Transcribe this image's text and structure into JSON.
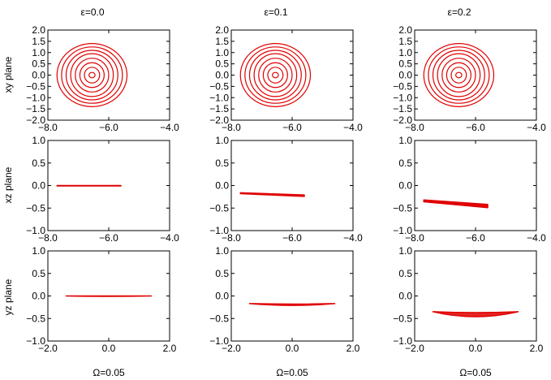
{
  "figure": {
    "column_titles": [
      "ε=0.0",
      "ε=0.1",
      "ε=0.2"
    ],
    "row_labels": [
      "xy plane",
      "xz plane",
      "yz plane"
    ],
    "bottom_labels": [
      "Ω=0.05",
      "Ω=0.05",
      "Ω=0.05"
    ],
    "colors": {
      "curve": "#e00000",
      "axes": "#000000",
      "background": "#ffffff"
    }
  },
  "chart_data": [
    {
      "type": "line",
      "row": "xy plane",
      "column": "ε=0.0",
      "xlim": [
        -8.0,
        -4.0
      ],
      "ylim": [
        -2.0,
        2.0
      ],
      "xticks": [
        "−8.0",
        "−6.0",
        "−4.0"
      ],
      "yticks": [
        "2.0",
        "1.5",
        "1.0",
        "0.5",
        "0.0",
        "−0.5",
        "−1.0",
        "−1.5",
        "−2.0"
      ],
      "curves": [
        {
          "kind": "ellipse",
          "center": [
            -6.55,
            0.0
          ],
          "rx": [
            0.1,
            0.25,
            0.4,
            0.55,
            0.7,
            0.85,
            1.0,
            1.15
          ],
          "ry": [
            0.12,
            0.35,
            0.55,
            0.75,
            0.95,
            1.1,
            1.25,
            1.4
          ]
        }
      ]
    },
    {
      "type": "line",
      "row": "xy plane",
      "column": "ε=0.1",
      "xlim": [
        -8.0,
        -4.0
      ],
      "ylim": [
        -2.0,
        2.0
      ],
      "xticks": [
        "−8.0",
        "−6.0",
        "−4.0"
      ],
      "yticks": [
        "2.0",
        "1.5",
        "1.0",
        "0.5",
        "0.0",
        "−0.5",
        "−1.0",
        "−1.5",
        "−2.0"
      ],
      "curves": [
        {
          "kind": "ellipse",
          "center": [
            -6.55,
            0.0
          ],
          "rx": [
            0.1,
            0.25,
            0.4,
            0.55,
            0.7,
            0.85,
            1.0,
            1.15
          ],
          "ry": [
            0.12,
            0.35,
            0.55,
            0.75,
            0.95,
            1.1,
            1.25,
            1.4
          ]
        }
      ]
    },
    {
      "type": "line",
      "row": "xy plane",
      "column": "ε=0.2",
      "xlim": [
        -8.0,
        -4.0
      ],
      "ylim": [
        -2.0,
        2.0
      ],
      "xticks": [
        "−8.0",
        "−6.0",
        "−4.0"
      ],
      "yticks": [
        "2.0",
        "1.5",
        "1.0",
        "0.5",
        "0.0",
        "−0.5",
        "−1.0",
        "−1.5",
        "−2.0"
      ],
      "curves": [
        {
          "kind": "ellipse",
          "center": [
            -6.55,
            0.0
          ],
          "rx": [
            0.1,
            0.25,
            0.4,
            0.55,
            0.7,
            0.85,
            1.0,
            1.15
          ],
          "ry": [
            0.12,
            0.35,
            0.55,
            0.75,
            0.95,
            1.1,
            1.25,
            1.4
          ]
        }
      ]
    },
    {
      "type": "line",
      "row": "xz plane",
      "column": "ε=0.0",
      "xlim": [
        -8.0,
        -4.0
      ],
      "ylim": [
        -1.0,
        1.0
      ],
      "xticks": [
        "−8.0",
        "−6.0",
        "−4.0"
      ],
      "yticks": [
        "1.0",
        "0.5",
        "0.0",
        "−0.5",
        "−1.0"
      ],
      "curves": [
        {
          "kind": "band",
          "x": [
            -7.7,
            -5.6
          ],
          "y_top": [
            0.0,
            0.0
          ],
          "y_bottom": [
            -0.01,
            -0.01
          ]
        }
      ]
    },
    {
      "type": "line",
      "row": "xz plane",
      "column": "ε=0.1",
      "xlim": [
        -8.0,
        -4.0
      ],
      "ylim": [
        -1.0,
        1.0
      ],
      "xticks": [
        "−8.0",
        "−6.0",
        "−4.0"
      ],
      "yticks": [
        "1.0",
        "0.5",
        "0.0",
        "−0.5",
        "−1.0"
      ],
      "curves": [
        {
          "kind": "band",
          "x": [
            -7.7,
            -5.6
          ],
          "y_top": [
            -0.16,
            -0.21
          ],
          "y_bottom": [
            -0.18,
            -0.24
          ]
        }
      ]
    },
    {
      "type": "line",
      "row": "xz plane",
      "column": "ε=0.2",
      "xlim": [
        -8.0,
        -4.0
      ],
      "ylim": [
        -1.0,
        1.0
      ],
      "xticks": [
        "−8.0",
        "−6.0",
        "−4.0"
      ],
      "yticks": [
        "1.0",
        "0.5",
        "0.0",
        "−0.5",
        "−1.0"
      ],
      "curves": [
        {
          "kind": "band",
          "x": [
            -7.7,
            -5.6
          ],
          "y_top": [
            -0.32,
            -0.42
          ],
          "y_bottom": [
            -0.36,
            -0.49
          ]
        }
      ]
    },
    {
      "type": "line",
      "row": "yz plane",
      "column": "ε=0.0",
      "xlim": [
        -2.0,
        2.0
      ],
      "ylim": [
        -1.0,
        1.0
      ],
      "xticks": [
        "−2.0",
        "0.0",
        "2.0"
      ],
      "yticks": [
        "1.0",
        "0.5",
        "0.0",
        "−0.5",
        "−1.0"
      ],
      "curves": [
        {
          "kind": "arc",
          "x": [
            -1.4,
            1.4
          ],
          "y_end": 0.0,
          "y_mid": [
            0.0,
            -0.01
          ]
        }
      ]
    },
    {
      "type": "line",
      "row": "yz plane",
      "column": "ε=0.1",
      "xlim": [
        -2.0,
        2.0
      ],
      "ylim": [
        -1.0,
        1.0
      ],
      "xticks": [
        "−2.0",
        "0.0",
        "2.0"
      ],
      "yticks": [
        "1.0",
        "0.5",
        "0.0",
        "−0.5",
        "−1.0"
      ],
      "curves": [
        {
          "kind": "arc",
          "x": [
            -1.4,
            1.4
          ],
          "y_end": -0.17,
          "y_mid": [
            -0.18,
            -0.21
          ]
        }
      ]
    },
    {
      "type": "line",
      "row": "yz plane",
      "column": "ε=0.2",
      "xlim": [
        -2.0,
        2.0
      ],
      "ylim": [
        -1.0,
        1.0
      ],
      "xticks": [
        "−2.0",
        "0.0",
        "2.0"
      ],
      "yticks": [
        "1.0",
        "0.5",
        "0.0",
        "−0.5",
        "−1.0"
      ],
      "curves": [
        {
          "kind": "arc",
          "x": [
            -1.4,
            1.4
          ],
          "y_end": -0.35,
          "y_mid": [
            -0.37,
            -0.46
          ]
        }
      ]
    }
  ]
}
